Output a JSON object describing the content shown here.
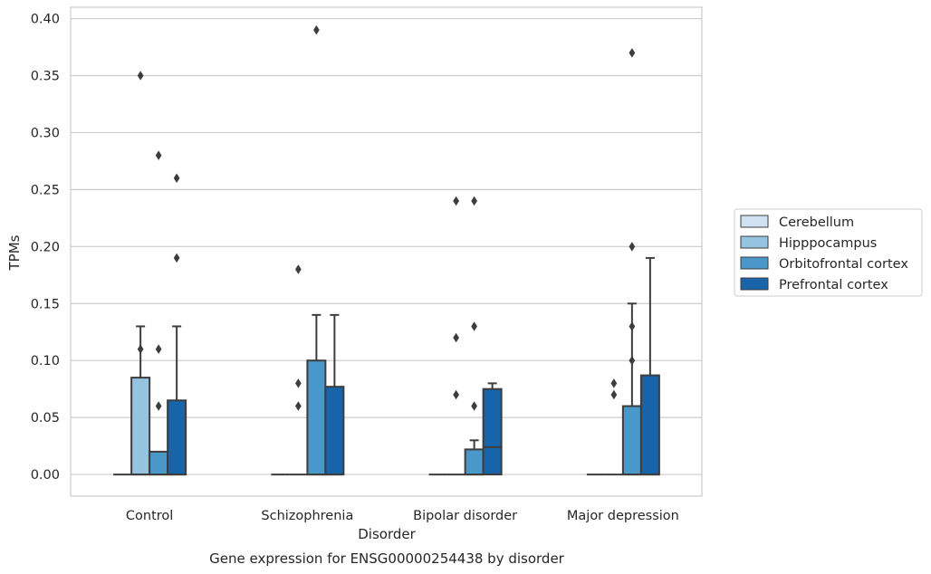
{
  "chart_data": {
    "type": "box",
    "title": "",
    "caption": "Gene expression for ENSG00000254438 by disorder",
    "xlabel": "Disorder",
    "ylabel": "TPMs",
    "ylim": [
      -0.019,
      0.41
    ],
    "yticks": [
      0.0,
      0.05,
      0.1,
      0.15,
      0.2,
      0.25,
      0.3,
      0.35,
      0.4
    ],
    "ytick_labels": [
      "0.00",
      "0.05",
      "0.10",
      "0.15",
      "0.20",
      "0.25",
      "0.30",
      "0.35",
      "0.40"
    ],
    "grid": true,
    "legend_position": "right-outside",
    "categories": [
      "Control",
      "Schizophrenia",
      "Bipolar disorder",
      "Major depression"
    ],
    "series": [
      {
        "name": "Cerebellum",
        "color": "#d0e1f2",
        "boxes": [
          {
            "q1": 0,
            "median": 0,
            "q3": 0,
            "whisker_low": 0,
            "whisker_high": 0,
            "outliers": []
          },
          {
            "q1": 0,
            "median": 0,
            "q3": 0,
            "whisker_low": 0,
            "whisker_high": 0,
            "outliers": []
          },
          {
            "q1": 0,
            "median": 0,
            "q3": 0,
            "whisker_low": 0,
            "whisker_high": 0,
            "outliers": []
          },
          {
            "q1": 0,
            "median": 0,
            "q3": 0,
            "whisker_low": 0,
            "whisker_high": 0,
            "outliers": []
          }
        ]
      },
      {
        "name": "Hipppocampus",
        "color": "#94c4df",
        "boxes": [
          {
            "q1": 0,
            "median": 0,
            "q3": 0.085,
            "whisker_low": 0,
            "whisker_high": 0.13,
            "outliers": [
              0.11,
              0.35
            ]
          },
          {
            "q1": 0,
            "median": 0,
            "q3": 0,
            "whisker_low": 0,
            "whisker_high": 0,
            "outliers": [
              0.06,
              0.08,
              0.18
            ]
          },
          {
            "q1": 0,
            "median": 0,
            "q3": 0,
            "whisker_low": 0,
            "whisker_high": 0,
            "outliers": [
              0.07,
              0.12,
              0.24
            ]
          },
          {
            "q1": 0,
            "median": 0,
            "q3": 0,
            "whisker_low": 0,
            "whisker_high": 0,
            "outliers": [
              0.07,
              0.08
            ]
          }
        ]
      },
      {
        "name": "Orbitofrontal cortex",
        "color": "#4a98c9",
        "boxes": [
          {
            "q1": 0,
            "median": 0,
            "q3": 0.02,
            "whisker_low": 0,
            "whisker_high": 0.02,
            "outliers": [
              0.06,
              0.11,
              0.28
            ]
          },
          {
            "q1": 0,
            "median": 0,
            "q3": 0.1,
            "whisker_low": 0,
            "whisker_high": 0.14,
            "outliers": [
              0.39
            ]
          },
          {
            "q1": 0,
            "median": 0,
            "q3": 0.022,
            "whisker_low": 0,
            "whisker_high": 0.03,
            "outliers": [
              0.06,
              0.13,
              0.24
            ]
          },
          {
            "q1": 0,
            "median": 0,
            "q3": 0.06,
            "whisker_low": 0,
            "whisker_high": 0.15,
            "outliers": [
              0.1,
              0.13,
              0.2,
              0.37
            ]
          }
        ]
      },
      {
        "name": "Prefrontal cortex",
        "color": "#1764ab",
        "boxes": [
          {
            "q1": 0,
            "median": 0,
            "q3": 0.065,
            "whisker_low": 0,
            "whisker_high": 0.13,
            "outliers": [
              0.19,
              0.26
            ]
          },
          {
            "q1": 0,
            "median": 0,
            "q3": 0.077,
            "whisker_low": 0,
            "whisker_high": 0.14,
            "outliers": []
          },
          {
            "q1": 0,
            "median": 0.024,
            "q3": 0.075,
            "whisker_low": 0,
            "whisker_high": 0.08,
            "outliers": []
          },
          {
            "q1": 0,
            "median": 0,
            "q3": 0.087,
            "whisker_low": 0,
            "whisker_high": 0.19,
            "outliers": []
          }
        ]
      }
    ]
  }
}
